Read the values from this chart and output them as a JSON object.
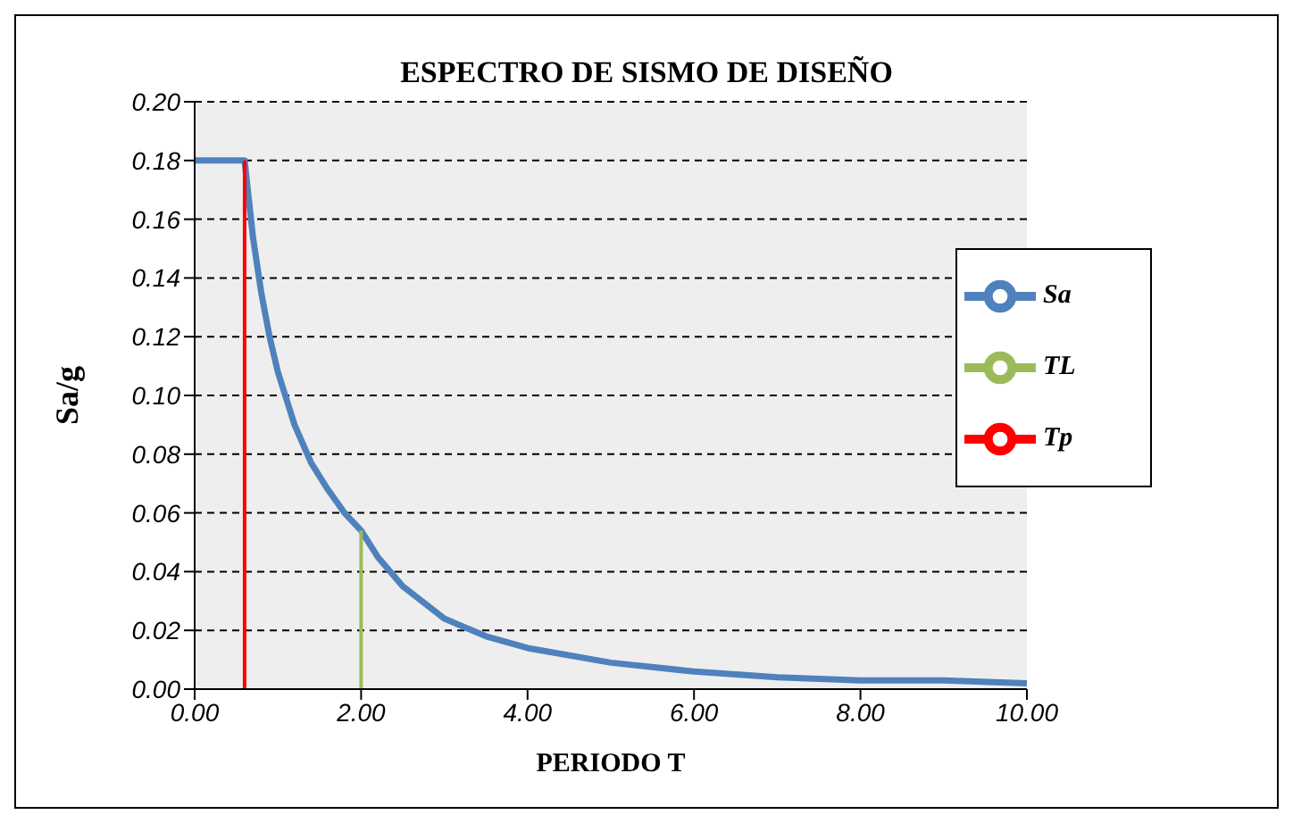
{
  "chart_data": {
    "type": "line",
    "title": "ESPECTRO DE SISMO DE DISEÑO",
    "xlabel": "PERIODO T",
    "ylabel": "Sa/g",
    "series": [
      {
        "name": "Sa",
        "color": "#4f81bd",
        "x": [
          0,
          0.6,
          0.7,
          0.8,
          0.9,
          1.0,
          1.2,
          1.4,
          1.6,
          1.8,
          2.0,
          2.2,
          2.5,
          3,
          3.5,
          4,
          5,
          6,
          7,
          8,
          9,
          10
        ],
        "values": [
          0.18,
          0.18,
          0.154,
          0.135,
          0.12,
          0.108,
          0.09,
          0.077,
          0.068,
          0.06,
          0.054,
          0.045,
          0.035,
          0.024,
          0.018,
          0.014,
          0.009,
          0.006,
          0.004,
          0.003,
          0.003,
          0.002
        ]
      },
      {
        "name": "Tp",
        "color": "#ff0000",
        "x": [
          0.6,
          0.6
        ],
        "values": [
          0,
          0.18
        ]
      },
      {
        "name": "TL",
        "color": "#9bbb59",
        "x": [
          2.0,
          2.0
        ],
        "values": [
          0,
          0.054
        ]
      }
    ],
    "xlim": [
      0,
      10
    ],
    "xticks": [
      {
        "value": 0,
        "label": "0.00"
      },
      {
        "value": 2,
        "label": "2.00"
      },
      {
        "value": 4,
        "label": "4.00"
      },
      {
        "value": 6,
        "label": "6.00"
      },
      {
        "value": 8,
        "label": "8.00"
      },
      {
        "value": 10,
        "label": "10.00"
      }
    ],
    "ylim": [
      0,
      0.2
    ],
    "yticks": [
      {
        "value": 0,
        "label": "0.00"
      },
      {
        "value": 0.02,
        "label": "0.02"
      },
      {
        "value": 0.04,
        "label": "0.04"
      },
      {
        "value": 0.06,
        "label": "0.06"
      },
      {
        "value": 0.08,
        "label": "0.08"
      },
      {
        "value": 0.1,
        "label": "0.10"
      },
      {
        "value": 0.12,
        "label": "0.12"
      },
      {
        "value": 0.14,
        "label": "0.14"
      },
      {
        "value": 0.16,
        "label": "0.16"
      },
      {
        "value": 0.18,
        "label": "0.18"
      },
      {
        "value": 0.2,
        "label": "0.20"
      }
    ],
    "grid": "y",
    "legend": "right",
    "line_style": "solid"
  }
}
